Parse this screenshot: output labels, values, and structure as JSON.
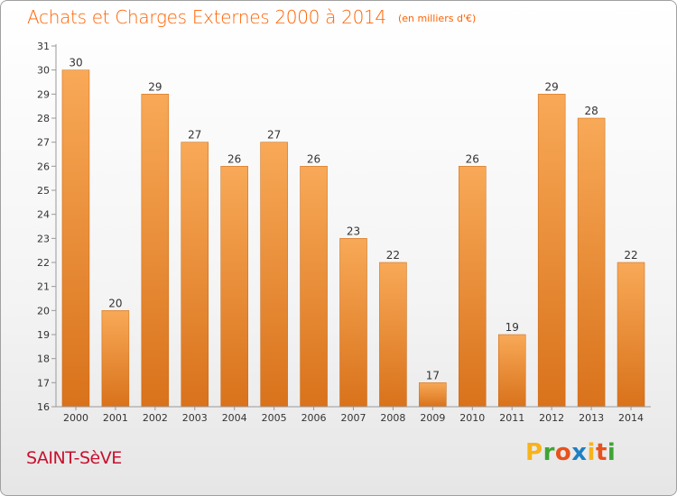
{
  "title": "Achats et Charges Externes 2000 à 2014",
  "subtitle": "(en milliers d'€)",
  "town": "SAINT-SèVE",
  "logo": {
    "letters": [
      "P",
      "r",
      "o",
      "x",
      "i",
      "t",
      "i"
    ],
    "colors": [
      "#f7b31b",
      "#3fa535",
      "#e8521c",
      "#1e7fc3",
      "#f7b31b",
      "#e8521c",
      "#3fa535"
    ]
  },
  "chart_data": {
    "type": "bar",
    "title": "Achats et Charges Externes 2000 à 2014",
    "subtitle": "(en milliers d'€)",
    "categories": [
      "2000",
      "2001",
      "2002",
      "2003",
      "2004",
      "2005",
      "2006",
      "2007",
      "2008",
      "2009",
      "2010",
      "2011",
      "2012",
      "2013",
      "2014"
    ],
    "values": [
      30,
      20,
      29,
      27,
      26,
      27,
      26,
      23,
      22,
      17,
      26,
      19,
      29,
      28,
      22
    ],
    "ylim": [
      16,
      31
    ],
    "yticks": [
      16,
      17,
      18,
      19,
      20,
      21,
      22,
      23,
      24,
      25,
      26,
      27,
      28,
      29,
      30,
      31
    ],
    "xlabel": "",
    "ylabel": "",
    "grid": false,
    "legend": "none",
    "colors": {
      "bar_top": "#f8a957",
      "bar_bottom": "#d9721b",
      "bar_edge": "#c8650f",
      "axis": "#999999",
      "label": "#333333"
    }
  }
}
